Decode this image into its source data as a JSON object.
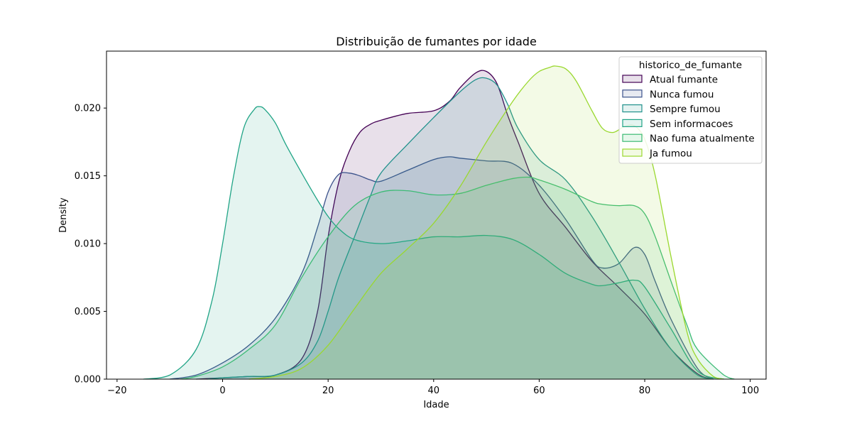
{
  "chart_data": {
    "type": "area",
    "subtype": "kde-density",
    "title": "Distribuição de fumantes por idade",
    "xlabel": "Idade",
    "ylabel": "Density",
    "xlim": [
      -22,
      103
    ],
    "ylim": [
      0,
      0.0242
    ],
    "xticks": [
      -20,
      0,
      20,
      40,
      60,
      80,
      100
    ],
    "yticks": [
      0.0,
      0.005,
      0.01,
      0.015,
      0.02
    ],
    "ytick_labels": [
      "0.000",
      "0.005",
      "0.010",
      "0.015",
      "0.020"
    ],
    "grid": false,
    "fill_opacity": 0.12,
    "legend": {
      "title": "historico_de_fumante",
      "placement": "top-right"
    },
    "series": [
      {
        "name": "Atual fumante",
        "color": "#440154",
        "x": [
          -5,
          0,
          5,
          10,
          15,
          18,
          20,
          22,
          24,
          26,
          28,
          30,
          35,
          40,
          43,
          45,
          48,
          50,
          52,
          54,
          56,
          60,
          65,
          70,
          75,
          80,
          85,
          90,
          93
        ],
        "y": [
          0.0,
          0.0001,
          0.0002,
          0.0003,
          0.0015,
          0.005,
          0.0105,
          0.0145,
          0.0168,
          0.0182,
          0.0188,
          0.0191,
          0.0196,
          0.0198,
          0.0205,
          0.0215,
          0.0226,
          0.0227,
          0.0218,
          0.0195,
          0.0175,
          0.0137,
          0.0112,
          0.0087,
          0.0068,
          0.0048,
          0.0022,
          0.0004,
          0.0
        ]
      },
      {
        "name": "Nunca fumou",
        "color": "#3b528b",
        "x": [
          -10,
          -5,
          0,
          5,
          10,
          15,
          18,
          20,
          22,
          24,
          26,
          28,
          30,
          35,
          40,
          43,
          45,
          50,
          55,
          60,
          65,
          70,
          72,
          75,
          78,
          80,
          82,
          85,
          90,
          93
        ],
        "y": [
          0.0,
          0.0003,
          0.0012,
          0.0025,
          0.0045,
          0.0078,
          0.0112,
          0.0138,
          0.0151,
          0.0152,
          0.015,
          0.0147,
          0.0146,
          0.0154,
          0.0162,
          0.0164,
          0.0163,
          0.0161,
          0.0159,
          0.0143,
          0.0118,
          0.0088,
          0.0082,
          0.0085,
          0.0097,
          0.0092,
          0.0072,
          0.0044,
          0.0008,
          0.0
        ]
      },
      {
        "name": "Sempre fumou",
        "color": "#21918c",
        "x": [
          -3,
          0,
          5,
          10,
          15,
          18,
          20,
          22,
          25,
          28,
          30,
          35,
          40,
          45,
          48,
          50,
          52,
          54,
          56,
          60,
          65,
          70,
          75,
          80,
          85,
          90,
          93
        ],
        "y": [
          0.0,
          0.0001,
          0.0002,
          0.0003,
          0.0012,
          0.0028,
          0.005,
          0.0075,
          0.0105,
          0.0135,
          0.0152,
          0.0173,
          0.0193,
          0.0212,
          0.0221,
          0.0222,
          0.0217,
          0.0203,
          0.0185,
          0.0162,
          0.0147,
          0.012,
          0.0087,
          0.0052,
          0.0022,
          0.0003,
          0.0
        ]
      },
      {
        "name": "Sem informacoes",
        "color": "#20a486",
        "x": [
          -15,
          -10,
          -5,
          -2,
          0,
          2,
          4,
          6,
          7,
          8,
          10,
          12,
          15,
          18,
          20,
          22,
          25,
          30,
          35,
          40,
          45,
          50,
          55,
          60,
          65,
          70,
          72,
          75,
          78,
          80,
          85,
          90,
          95
        ],
        "y": [
          0.0,
          0.0003,
          0.0022,
          0.0058,
          0.01,
          0.0148,
          0.0185,
          0.0199,
          0.0201,
          0.0199,
          0.0189,
          0.0173,
          0.0152,
          0.0132,
          0.012,
          0.0111,
          0.0103,
          0.01,
          0.0102,
          0.0105,
          0.0105,
          0.0106,
          0.0103,
          0.0092,
          0.0078,
          0.007,
          0.0069,
          0.0071,
          0.0073,
          0.0068,
          0.0037,
          0.0006,
          0.0
        ]
      },
      {
        "name": "Nao fuma atualmente",
        "color": "#3cbb75",
        "x": [
          -8,
          -5,
          0,
          5,
          10,
          15,
          20,
          25,
          30,
          35,
          40,
          45,
          50,
          55,
          58,
          60,
          65,
          70,
          72,
          75,
          78,
          80,
          82,
          85,
          88,
          90,
          95,
          97
        ],
        "y": [
          0.0,
          0.0002,
          0.0009,
          0.0022,
          0.004,
          0.0075,
          0.0105,
          0.0128,
          0.0138,
          0.0139,
          0.0136,
          0.0137,
          0.0143,
          0.0148,
          0.0149,
          0.0147,
          0.014,
          0.0131,
          0.0129,
          0.0128,
          0.0128,
          0.0122,
          0.0105,
          0.0072,
          0.004,
          0.0022,
          0.0003,
          0.0
        ]
      },
      {
        "name": "Ja fumou",
        "color": "#9ad82f",
        "x": [
          5,
          10,
          15,
          20,
          25,
          30,
          35,
          40,
          45,
          50,
          55,
          58,
          60,
          62,
          63,
          65,
          67,
          70,
          72,
          74,
          76,
          78,
          80,
          82,
          85,
          88,
          90,
          93,
          95
        ],
        "y": [
          0.0,
          0.0002,
          0.0008,
          0.0025,
          0.0052,
          0.0078,
          0.0096,
          0.0115,
          0.0142,
          0.0175,
          0.0205,
          0.022,
          0.0227,
          0.023,
          0.0231,
          0.0229,
          0.022,
          0.0198,
          0.0185,
          0.0182,
          0.0186,
          0.0187,
          0.0177,
          0.015,
          0.009,
          0.0035,
          0.0015,
          0.0002,
          0.0
        ]
      }
    ]
  }
}
